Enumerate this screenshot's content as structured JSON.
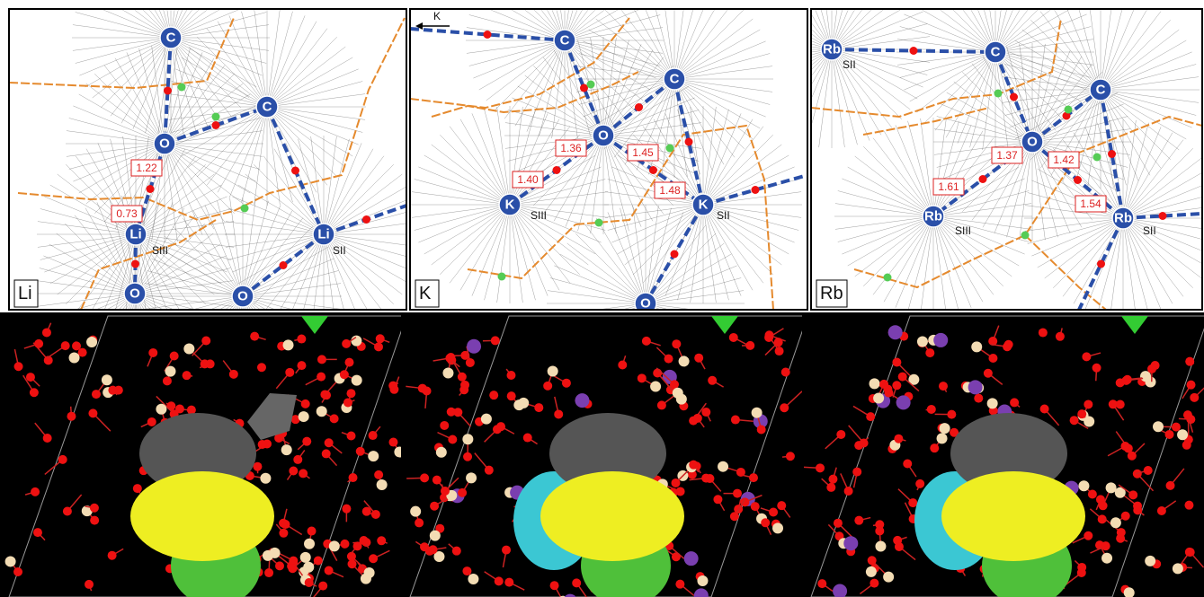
{
  "panels": [
    {
      "label": "Li",
      "atoms": [
        "C",
        "C",
        "O",
        "Li",
        "Li",
        "O",
        "O"
      ],
      "sites": [
        "SIII",
        "SII"
      ],
      "distances": [
        "1.22",
        "0.73"
      ]
    },
    {
      "label": "K",
      "direction": "K",
      "atoms": [
        "C",
        "C",
        "O",
        "K",
        "K",
        "O"
      ],
      "sites": [
        "SIII",
        "SII"
      ],
      "distances": [
        "1.36",
        "1.45",
        "1.40",
        "1.48"
      ]
    },
    {
      "label": "Rb",
      "atoms": [
        "Rb",
        "C",
        "C",
        "O",
        "Rb",
        "Rb"
      ],
      "sites": [
        "SII",
        "SIII",
        "SII"
      ],
      "distances": [
        "1.37",
        "1.42",
        "1.61",
        "1.54"
      ]
    }
  ]
}
